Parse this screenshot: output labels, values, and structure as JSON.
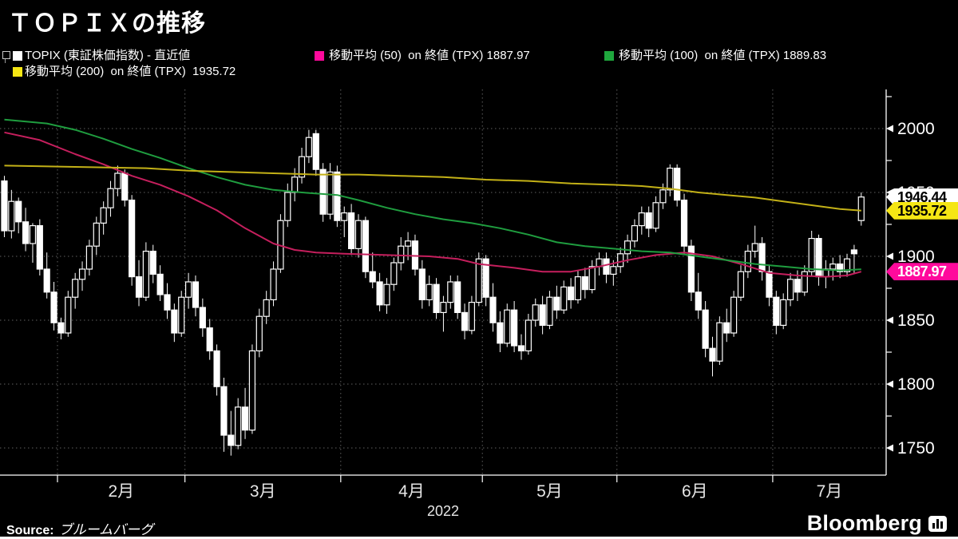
{
  "title": "ＴＯＰＩＸの推移",
  "legend": {
    "items": [
      {
        "label": "TOPIX (東証株価指数) - 直近値",
        "color": "#ffffff"
      },
      {
        "label": "移動平均 (50)  on 終値 (TPX) 1887.97",
        "color": "#ff0a9c"
      },
      {
        "label": "移動平均 (100)  on 終値 (TPX) 1889.83",
        "color": "#1fa73d"
      },
      {
        "label": "移動平均 (200)  on 終値 (TPX)  1935.72",
        "color": "#f5e614"
      }
    ]
  },
  "source": {
    "prefix": "Source:",
    "text": "ブルームバーグ"
  },
  "logo": {
    "text": "Bloomberg"
  },
  "chart_data": {
    "type": "candlestick",
    "title": "ＴＯＰＩＸの推移",
    "background": "#000000",
    "grid": true,
    "y_axis": {
      "major_ticks": [
        2000,
        1950,
        1900,
        1850,
        1800,
        1750
      ],
      "minor_step": 25,
      "ylim": [
        1725,
        2030
      ]
    },
    "x_axis": {
      "year": "2022",
      "month_labels": [
        "2月",
        "3月",
        "4月",
        "5月",
        "6月",
        "7月"
      ],
      "month_start_indices": [
        8,
        26,
        48,
        68,
        87,
        109
      ],
      "total_days": 122
    },
    "price_labels": [
      {
        "name": "topix-last-price",
        "text": "1946.44",
        "value": 1946.44,
        "bg": "#ffffff",
        "fg": "#000000"
      },
      {
        "name": "ma200-last-value",
        "text": "1935.72",
        "value": 1935.72,
        "bg": "#f5e614",
        "fg": "#000000"
      },
      {
        "name": "ma50-last-value",
        "text": "1887.97",
        "value": 1887.97,
        "bg": "#ff0a9c",
        "fg": "#ffffff"
      }
    ],
    "series": [
      {
        "name": "TOPIX (東証株価指数) - 直近値",
        "type": "candles",
        "up_fill": "#000000",
        "down_fill": "#ffffff",
        "stroke": "#ffffff",
        "ohlc": [
          [
            1959,
            1963,
            1915,
            1920
          ],
          [
            1920,
            1952,
            1914,
            1943
          ],
          [
            1943,
            1946,
            1918,
            1927
          ],
          [
            1927,
            1938,
            1904,
            1910
          ],
          [
            1910,
            1926,
            1895,
            1924
          ],
          [
            1924,
            1929,
            1885,
            1890
          ],
          [
            1890,
            1903,
            1867,
            1872
          ],
          [
            1872,
            1880,
            1842,
            1848
          ],
          [
            1848,
            1852,
            1835,
            1840
          ],
          [
            1840,
            1873,
            1837,
            1868
          ],
          [
            1868,
            1887,
            1859,
            1882
          ],
          [
            1882,
            1896,
            1873,
            1890
          ],
          [
            1890,
            1913,
            1885,
            1908
          ],
          [
            1908,
            1931,
            1901,
            1926
          ],
          [
            1926,
            1943,
            1917,
            1938
          ],
          [
            1938,
            1959,
            1931,
            1953
          ],
          [
            1953,
            1971,
            1947,
            1965
          ],
          [
            1965,
            1968,
            1939,
            1944
          ],
          [
            1944,
            1948,
            1877,
            1884
          ],
          [
            1884,
            1897,
            1861,
            1868
          ],
          [
            1868,
            1911,
            1865,
            1904
          ],
          [
            1904,
            1909,
            1879,
            1886
          ],
          [
            1886,
            1893,
            1865,
            1870
          ],
          [
            1870,
            1879,
            1851,
            1858
          ],
          [
            1858,
            1863,
            1833,
            1840
          ],
          [
            1840,
            1873,
            1837,
            1868
          ],
          [
            1868,
            1887,
            1859,
            1880
          ],
          [
            1880,
            1885,
            1853,
            1860
          ],
          [
            1860,
            1867,
            1837,
            1844
          ],
          [
            1844,
            1851,
            1819,
            1826
          ],
          [
            1826,
            1831,
            1791,
            1798
          ],
          [
            1798,
            1805,
            1747,
            1760
          ],
          [
            1760,
            1779,
            1744,
            1752
          ],
          [
            1752,
            1789,
            1749,
            1782
          ],
          [
            1782,
            1797,
            1757,
            1764
          ],
          [
            1764,
            1831,
            1761,
            1826
          ],
          [
            1826,
            1859,
            1821,
            1853
          ],
          [
            1853,
            1873,
            1847,
            1866
          ],
          [
            1866,
            1896,
            1861,
            1890
          ],
          [
            1890,
            1933,
            1887,
            1928
          ],
          [
            1928,
            1957,
            1923,
            1950
          ],
          [
            1950,
            1969,
            1943,
            1962
          ],
          [
            1962,
            1985,
            1957,
            1978
          ],
          [
            1978,
            1999,
            1973,
            1993
          ],
          [
            1996,
            1999,
            1963,
            1968
          ],
          [
            1968,
            1973,
            1927,
            1933
          ],
          [
            1933,
            1973,
            1929,
            1966
          ],
          [
            1966,
            1971,
            1923,
            1928
          ],
          [
            1928,
            1939,
            1915,
            1934
          ],
          [
            1934,
            1941,
            1901,
            1906
          ],
          [
            1906,
            1933,
            1899,
            1928
          ],
          [
            1928,
            1931,
            1883,
            1888
          ],
          [
            1888,
            1903,
            1875,
            1880
          ],
          [
            1880,
            1887,
            1857,
            1862
          ],
          [
            1862,
            1883,
            1855,
            1878
          ],
          [
            1878,
            1899,
            1873,
            1895
          ],
          [
            1895,
            1915,
            1889,
            1908
          ],
          [
            1908,
            1919,
            1897,
            1912
          ],
          [
            1912,
            1917,
            1885,
            1890
          ],
          [
            1890,
            1897,
            1859,
            1866
          ],
          [
            1866,
            1885,
            1861,
            1878
          ],
          [
            1878,
            1883,
            1851,
            1856
          ],
          [
            1856,
            1869,
            1841,
            1864
          ],
          [
            1864,
            1885,
            1859,
            1880
          ],
          [
            1880,
            1885,
            1851,
            1856
          ],
          [
            1856,
            1863,
            1835,
            1842
          ],
          [
            1842,
            1869,
            1839,
            1864
          ],
          [
            1864,
            1903,
            1861,
            1898
          ],
          [
            1898,
            1901,
            1861,
            1868
          ],
          [
            1868,
            1879,
            1841,
            1848
          ],
          [
            1848,
            1857,
            1825,
            1832
          ],
          [
            1832,
            1863,
            1829,
            1858
          ],
          [
            1858,
            1865,
            1825,
            1830
          ],
          [
            1830,
            1839,
            1819,
            1826
          ],
          [
            1826,
            1855,
            1823,
            1850
          ],
          [
            1850,
            1867,
            1845,
            1862
          ],
          [
            1862,
            1869,
            1839,
            1846
          ],
          [
            1846,
            1873,
            1843,
            1868
          ],
          [
            1868,
            1877,
            1851,
            1858
          ],
          [
            1858,
            1881,
            1855,
            1876
          ],
          [
            1876,
            1883,
            1859,
            1866
          ],
          [
            1866,
            1889,
            1863,
            1884
          ],
          [
            1884,
            1891,
            1867,
            1874
          ],
          [
            1874,
            1897,
            1871,
            1892
          ],
          [
            1892,
            1903,
            1885,
            1898
          ],
          [
            1898,
            1903,
            1879,
            1886
          ],
          [
            1886,
            1897,
            1877,
            1892
          ],
          [
            1892,
            1907,
            1887,
            1902
          ],
          [
            1902,
            1917,
            1895,
            1912
          ],
          [
            1912,
            1929,
            1907,
            1924
          ],
          [
            1924,
            1939,
            1917,
            1934
          ],
          [
            1934,
            1939,
            1915,
            1922
          ],
          [
            1922,
            1947,
            1919,
            1942
          ],
          [
            1942,
            1957,
            1937,
            1952
          ],
          [
            1952,
            1972,
            1947,
            1969
          ],
          [
            1969,
            1972,
            1939,
            1944
          ],
          [
            1944,
            1949,
            1901,
            1908
          ],
          [
            1908,
            1913,
            1865,
            1872
          ],
          [
            1872,
            1887,
            1851,
            1858
          ],
          [
            1858,
            1865,
            1821,
            1828
          ],
          [
            1828,
            1837,
            1806,
            1818
          ],
          [
            1818,
            1853,
            1815,
            1848
          ],
          [
            1848,
            1859,
            1833,
            1840
          ],
          [
            1840,
            1873,
            1837,
            1868
          ],
          [
            1868,
            1893,
            1865,
            1888
          ],
          [
            1888,
            1909,
            1883,
            1904
          ],
          [
            1904,
            1924,
            1899,
            1910
          ],
          [
            1910,
            1915,
            1881,
            1888
          ],
          [
            1888,
            1893,
            1861,
            1868
          ],
          [
            1868,
            1873,
            1839,
            1846
          ],
          [
            1846,
            1871,
            1843,
            1866
          ],
          [
            1866,
            1887,
            1861,
            1882
          ],
          [
            1882,
            1889,
            1865,
            1872
          ],
          [
            1872,
            1893,
            1869,
            1888
          ],
          [
            1888,
            1920,
            1885,
            1914
          ],
          [
            1914,
            1917,
            1877,
            1884
          ],
          [
            1884,
            1897,
            1875,
            1890
          ],
          [
            1890,
            1899,
            1881,
            1894
          ],
          [
            1894,
            1901,
            1883,
            1888
          ],
          [
            1888,
            1902,
            1884,
            1898
          ],
          [
            1905,
            1909,
            1886,
            1902
          ],
          [
            1928,
            1950,
            1924,
            1946.44
          ]
        ]
      },
      {
        "name": "移動平均 (50)  on 終値 (TPX)",
        "type": "line",
        "color": "#c51f5d",
        "last": 1887.97,
        "points": [
          [
            0,
            1997
          ],
          [
            5,
            1991
          ],
          [
            10,
            1980
          ],
          [
            14,
            1972
          ],
          [
            18,
            1963
          ],
          [
            22,
            1956
          ],
          [
            26,
            1947
          ],
          [
            30,
            1936
          ],
          [
            34,
            1922
          ],
          [
            38,
            1910
          ],
          [
            41,
            1905
          ],
          [
            44,
            1903
          ],
          [
            48,
            1902
          ],
          [
            54,
            1901
          ],
          [
            60,
            1900
          ],
          [
            64,
            1898
          ],
          [
            67,
            1894
          ],
          [
            72,
            1891
          ],
          [
            76,
            1888
          ],
          [
            80,
            1888
          ],
          [
            84,
            1892
          ],
          [
            88,
            1897
          ],
          [
            92,
            1901
          ],
          [
            96,
            1903
          ],
          [
            100,
            1900
          ],
          [
            104,
            1894
          ],
          [
            108,
            1887
          ],
          [
            112,
            1885
          ],
          [
            116,
            1884
          ],
          [
            119,
            1885
          ],
          [
            121,
            1887.97
          ]
        ]
      },
      {
        "name": "移動平均 (100)  on 終値 (TPX)",
        "type": "line",
        "color": "#1f9d3f",
        "last": 1889.83,
        "points": [
          [
            0,
            2007
          ],
          [
            6,
            2004
          ],
          [
            10,
            1999
          ],
          [
            14,
            1992
          ],
          [
            18,
            1984
          ],
          [
            22,
            1977
          ],
          [
            26,
            1969
          ],
          [
            30,
            1962
          ],
          [
            34,
            1956
          ],
          [
            38,
            1952
          ],
          [
            42,
            1950
          ],
          [
            47,
            1948
          ],
          [
            50,
            1944
          ],
          [
            54,
            1938
          ],
          [
            58,
            1933
          ],
          [
            62,
            1929
          ],
          [
            66,
            1926
          ],
          [
            70,
            1922
          ],
          [
            74,
            1917
          ],
          [
            78,
            1911
          ],
          [
            82,
            1908
          ],
          [
            86,
            1906
          ],
          [
            90,
            1904
          ],
          [
            94,
            1903
          ],
          [
            98,
            1900
          ],
          [
            102,
            1897
          ],
          [
            106,
            1894
          ],
          [
            110,
            1892
          ],
          [
            114,
            1890
          ],
          [
            118,
            1889
          ],
          [
            121,
            1889.83
          ]
        ]
      },
      {
        "name": "移動平均 (200)  on 終値 (TPX)",
        "type": "line",
        "color": "#c3b117",
        "last": 1935.72,
        "points": [
          [
            0,
            1971
          ],
          [
            10,
            1970
          ],
          [
            20,
            1969
          ],
          [
            26,
            1967
          ],
          [
            32,
            1966
          ],
          [
            38,
            1965
          ],
          [
            44,
            1964
          ],
          [
            50,
            1964
          ],
          [
            56,
            1963
          ],
          [
            62,
            1962
          ],
          [
            68,
            1960
          ],
          [
            74,
            1959
          ],
          [
            80,
            1957
          ],
          [
            86,
            1956
          ],
          [
            90,
            1955
          ],
          [
            94,
            1953
          ],
          [
            98,
            1950
          ],
          [
            102,
            1948
          ],
          [
            106,
            1946
          ],
          [
            110,
            1943
          ],
          [
            114,
            1940
          ],
          [
            118,
            1937
          ],
          [
            121,
            1935.72
          ]
        ]
      }
    ]
  }
}
